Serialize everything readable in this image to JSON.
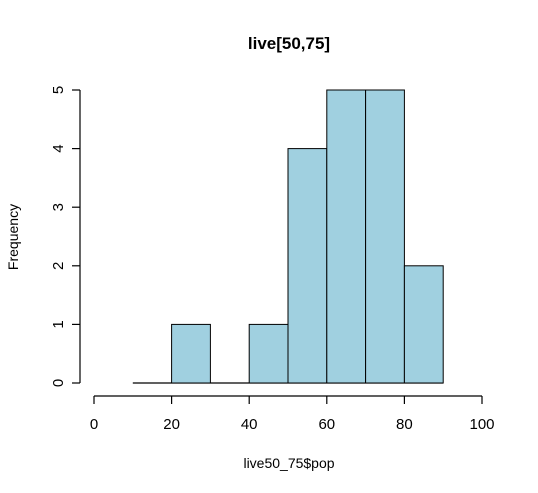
{
  "chart_data": {
    "type": "bar",
    "title": "live[50,75]",
    "xlabel": "live50_75$pop",
    "ylabel": "Frequency",
    "bins": [
      {
        "x0": 10,
        "x1": 20,
        "value": 0
      },
      {
        "x0": 20,
        "x1": 30,
        "value": 1
      },
      {
        "x0": 30,
        "x1": 40,
        "value": 0
      },
      {
        "x0": 40,
        "x1": 50,
        "value": 1
      },
      {
        "x0": 50,
        "x1": 60,
        "value": 4
      },
      {
        "x0": 60,
        "x1": 70,
        "value": 5
      },
      {
        "x0": 70,
        "x1": 80,
        "value": 5
      },
      {
        "x0": 80,
        "x1": 90,
        "value": 2
      }
    ],
    "xlim": [
      0,
      100
    ],
    "ylim": [
      0,
      5
    ],
    "xticks": [
      "0",
      "20",
      "40",
      "60",
      "80",
      "100"
    ],
    "yticks": [
      "0",
      "1",
      "2",
      "3",
      "4",
      "5"
    ],
    "bar_color": "#a0d0e0",
    "grid": false
  }
}
